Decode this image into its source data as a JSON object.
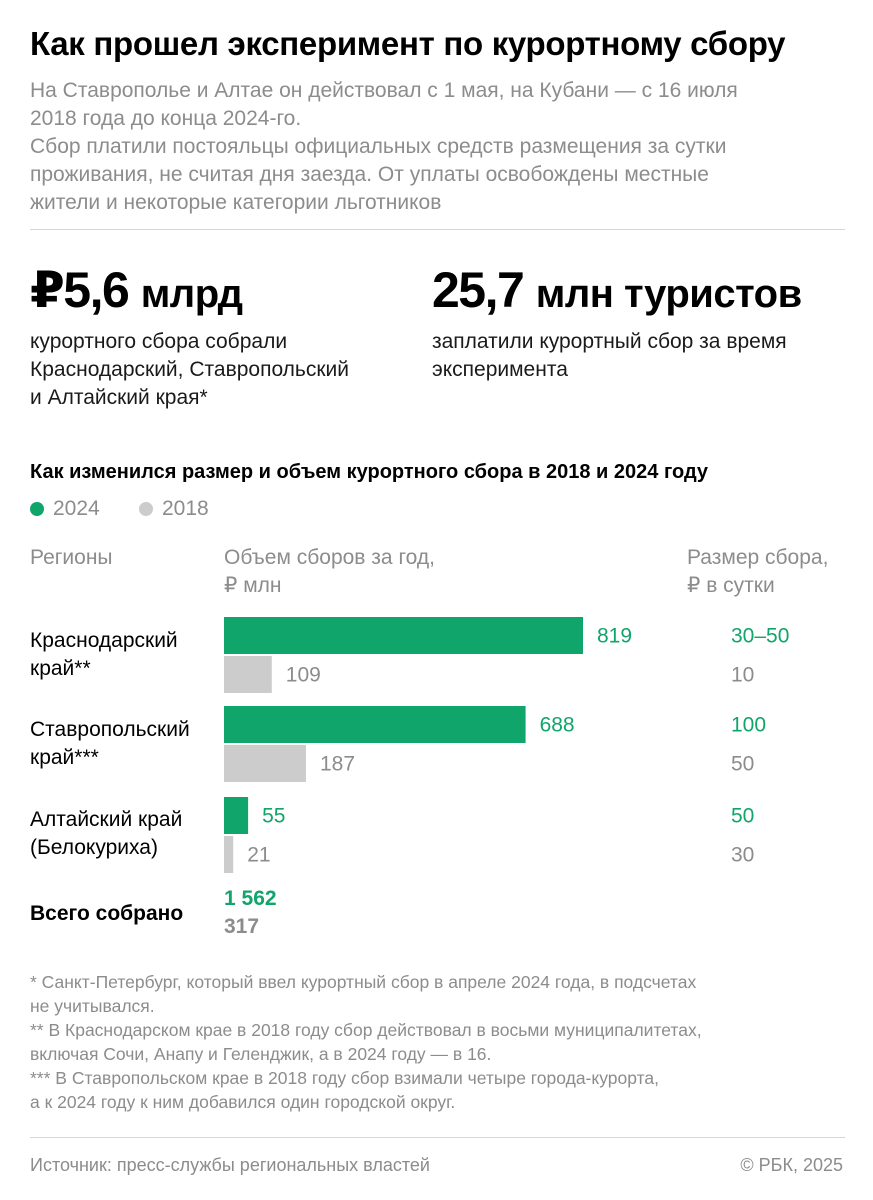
{
  "header": {
    "title": "Как прошел эксперимент по курортному сбору",
    "subtitle_lines": [
      "На Ставрополье и Алтае он действовал с 1 мая, на Кубани — с 16 июля",
      "2018 года до конца 2024-го.",
      "Сбор платили постояльцы официальных средств размещения за сутки",
      "проживания, не считая дня заезда. От уплаты освобождены местные",
      "жители и некоторые категории льготников"
    ]
  },
  "stats": {
    "left": {
      "value": "₽5,6",
      "unit": "млрд",
      "desc_lines": [
        "курортного сбора собрали",
        "Краснодарский, Ставропольский",
        "и Алтайский края*"
      ]
    },
    "right": {
      "value": "25,7",
      "unit": "млн туристов",
      "desc_lines": [
        "заплатили курортный сбор за время",
        "эксперимента"
      ]
    }
  },
  "colors": {
    "series_2024": "#10a56a",
    "series_2018": "#cccccc",
    "text_2018": "#8c8c8c",
    "muted": "#8c8c8c"
  },
  "chart_data": {
    "type": "bar",
    "title": "Как изменился размер и объем курортного сбора в 2018 и 2024 году",
    "legend": {
      "placement": "top-left",
      "items": [
        "2024",
        "2018"
      ]
    },
    "columns": {
      "region": "Регионы",
      "volume_lines": [
        "Объем сборов за год,",
        "₽ млн"
      ],
      "fee_lines": [
        "Размер сбора,",
        "₽ в сутки"
      ]
    },
    "categories": [
      "Краснодарский край**",
      "Ставропольский край***",
      "Алтайский край (Белокуриха)"
    ],
    "category_lines": [
      [
        "Краснодарский",
        "край**"
      ],
      [
        "Ставропольский",
        "край***"
      ],
      [
        "Алтайский край",
        "(Белокуриха)"
      ]
    ],
    "series": [
      {
        "name": "2024",
        "values": [
          819,
          688,
          55
        ],
        "fees": [
          "30–50",
          "100",
          "50"
        ]
      },
      {
        "name": "2018",
        "values": [
          109,
          187,
          21
        ],
        "fees": [
          "10",
          "50",
          "30"
        ]
      }
    ],
    "value_labels": {
      "2024": [
        "819",
        "688",
        "55"
      ],
      "2018": [
        "109",
        "187",
        "21"
      ]
    },
    "total": {
      "label": "Всего собрано",
      "value_2024": "1 562",
      "value_2018": "317"
    },
    "xlim": [
      0,
      819
    ]
  },
  "footnotes": [
    "* Санкт-Петербург, который ввел курортный сбор в апреле 2024 года, в подсчетах",
    "не учитывался.",
    "** В Краснодарском крае в 2018 году сбор действовал в восьми муниципалитетах,",
    "включая Сочи, Анапу и Геленджик, а в 2024 году — в 16.",
    "*** В Ставропольском крае в 2018 году сбор взимали четыре города-курорта,",
    "а к 2024 году к ним добавился один городской округ."
  ],
  "footer": {
    "source": "Источник: пресс-службы региональных властей",
    "copyright": "© РБК, 2025"
  }
}
